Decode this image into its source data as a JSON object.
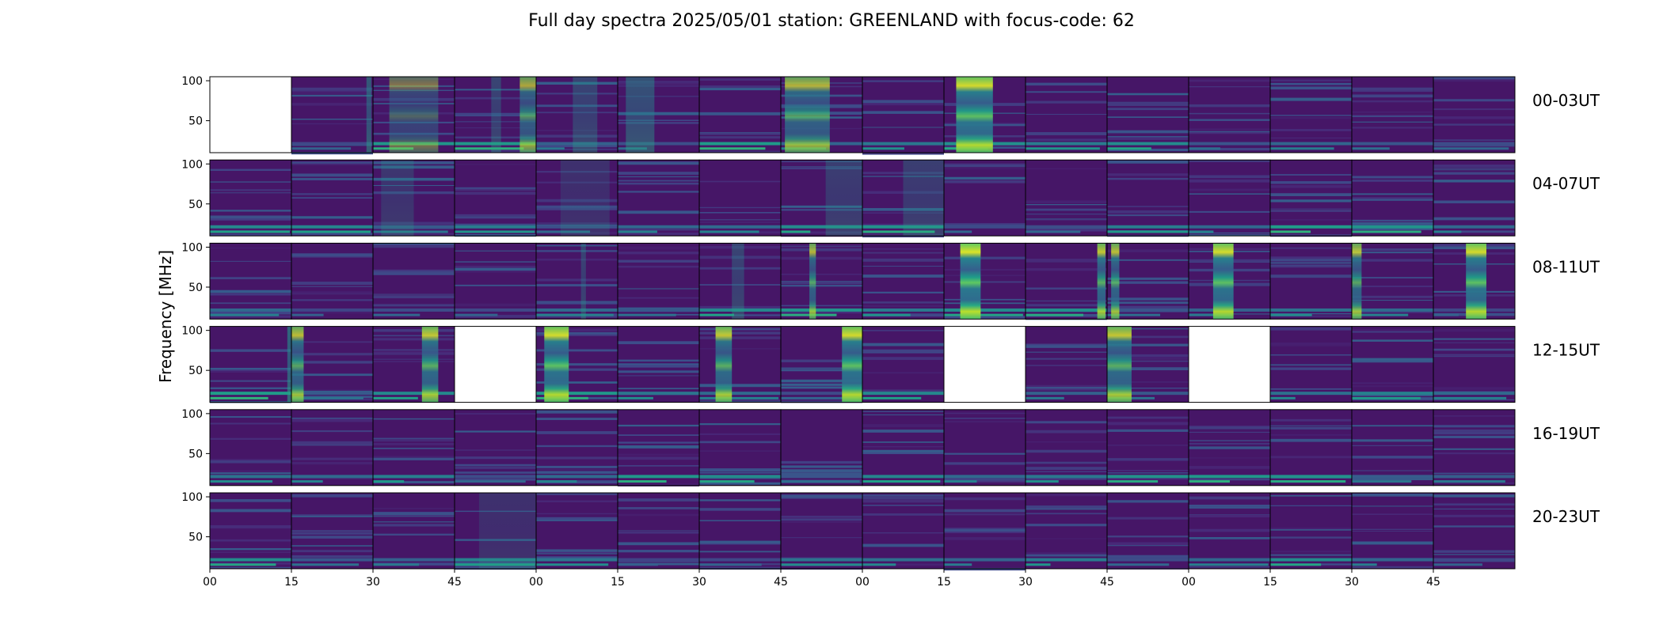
{
  "chart_data": {
    "type": "heatmap",
    "title": "Full day spectra 2025/05/01 station: GREENLAND with focus-code: 62",
    "ylabel": "Frequency [MHz]",
    "xlabel": "",
    "ylim": [
      10,
      105
    ],
    "yticks": [
      50,
      100
    ],
    "xticks": [
      "00",
      "15",
      "30",
      "45",
      "00",
      "15",
      "30",
      "45",
      "00",
      "15",
      "30",
      "45",
      "00",
      "15",
      "30",
      "45"
    ],
    "rows": [
      {
        "label": "00-03UT",
        "missing": [
          0
        ],
        "bursts": [
          {
            "panel": 1,
            "t": 0.92,
            "w": 0.06,
            "a": 0.5
          },
          {
            "panel": 2,
            "t": 0.2,
            "w": 0.6,
            "a": 0.45,
            "bands": true
          },
          {
            "panel": 3,
            "t": 0.45,
            "w": 0.12,
            "a": 0.35
          },
          {
            "panel": 3,
            "t": 0.8,
            "w": 0.2,
            "a": 0.7,
            "bands": true
          },
          {
            "panel": 4,
            "t": 0.45,
            "w": 0.3,
            "a": 0.35
          },
          {
            "panel": 5,
            "t": 0.1,
            "w": 0.35,
            "a": 0.45
          },
          {
            "panel": 7,
            "t": 0.05,
            "w": 0.55,
            "a": 0.75,
            "bands": true
          },
          {
            "panel": 9,
            "t": 0.15,
            "w": 0.45,
            "a": 0.95,
            "bands": true
          }
        ]
      },
      {
        "label": "04-07UT",
        "missing": [],
        "bursts": [
          {
            "panel": 2,
            "t": 0.1,
            "w": 0.4,
            "a": 0.25
          },
          {
            "panel": 4,
            "t": 0.3,
            "w": 0.6,
            "a": 0.2
          },
          {
            "panel": 7,
            "t": 0.55,
            "w": 0.45,
            "a": 0.3
          },
          {
            "panel": 8,
            "t": 0.5,
            "w": 0.5,
            "a": 0.3
          }
        ]
      },
      {
        "label": "08-11UT",
        "missing": [],
        "bursts": [
          {
            "panel": 4,
            "t": 0.55,
            "w": 0.06,
            "a": 0.35
          },
          {
            "panel": 6,
            "t": 0.4,
            "w": 0.15,
            "a": 0.35
          },
          {
            "panel": 7,
            "t": 0.35,
            "w": 0.08,
            "a": 0.75,
            "bands": true
          },
          {
            "panel": 9,
            "t": 0.2,
            "w": 0.25,
            "a": 1.0,
            "bands": true
          },
          {
            "panel": 10,
            "t": 0.88,
            "w": 0.1,
            "a": 0.85,
            "bands": true
          },
          {
            "panel": 11,
            "t": 0.05,
            "w": 0.1,
            "a": 0.8,
            "bands": true
          },
          {
            "panel": 12,
            "t": 0.3,
            "w": 0.25,
            "a": 0.95,
            "bands": true
          },
          {
            "panel": 14,
            "t": 0.0,
            "w": 0.12,
            "a": 0.8,
            "bands": true
          },
          {
            "panel": 15,
            "t": 0.4,
            "w": 0.25,
            "a": 0.95,
            "bands": true
          }
        ]
      },
      {
        "label": "12-15UT",
        "missing": [
          3,
          9,
          12
        ],
        "bursts": [
          {
            "panel": 0,
            "t": 0.95,
            "w": 0.05,
            "a": 0.6
          },
          {
            "panel": 1,
            "t": 0.0,
            "w": 0.15,
            "a": 0.8,
            "bands": true
          },
          {
            "panel": 2,
            "t": 0.6,
            "w": 0.2,
            "a": 0.85,
            "bands": true
          },
          {
            "panel": 4,
            "t": 0.1,
            "w": 0.3,
            "a": 0.95,
            "bands": true
          },
          {
            "panel": 6,
            "t": 0.2,
            "w": 0.2,
            "a": 0.85,
            "bands": true
          },
          {
            "panel": 7,
            "t": 0.75,
            "w": 0.25,
            "a": 0.95,
            "bands": true
          },
          {
            "panel": 11,
            "t": 0.0,
            "w": 0.3,
            "a": 0.85,
            "bands": true
          }
        ]
      },
      {
        "label": "16-19UT",
        "missing": [],
        "bursts": []
      },
      {
        "label": "20-23UT",
        "missing": [],
        "bursts": [
          {
            "panel": 3,
            "t": 0.3,
            "w": 0.7,
            "a": 0.2
          }
        ]
      }
    ]
  }
}
